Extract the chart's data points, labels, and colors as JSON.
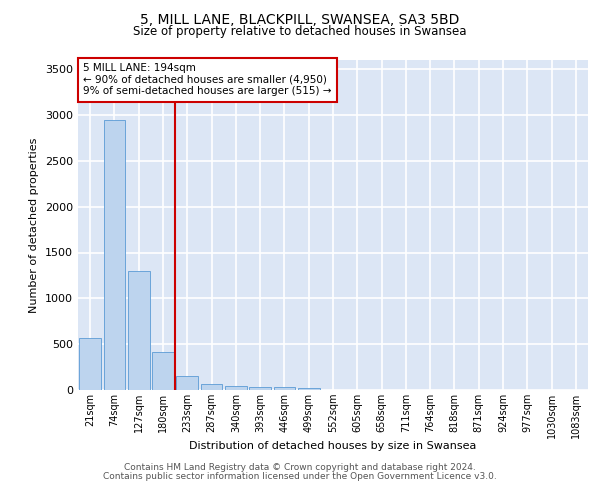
{
  "title": "5, MILL LANE, BLACKPILL, SWANSEA, SA3 5BD",
  "subtitle": "Size of property relative to detached houses in Swansea",
  "xlabel": "Distribution of detached houses by size in Swansea",
  "ylabel": "Number of detached properties",
  "categories": [
    "21sqm",
    "74sqm",
    "127sqm",
    "180sqm",
    "233sqm",
    "287sqm",
    "340sqm",
    "393sqm",
    "446sqm",
    "499sqm",
    "552sqm",
    "605sqm",
    "658sqm",
    "711sqm",
    "764sqm",
    "818sqm",
    "871sqm",
    "924sqm",
    "977sqm",
    "1030sqm",
    "1083sqm"
  ],
  "values": [
    570,
    2950,
    1300,
    420,
    155,
    65,
    40,
    35,
    35,
    25,
    0,
    0,
    0,
    0,
    0,
    0,
    0,
    0,
    0,
    0,
    0
  ],
  "bar_color": "#bdd4ee",
  "bar_edge_color": "#5b9bd5",
  "background_color": "#dce6f5",
  "grid_color": "#ffffff",
  "annotation_text": "5 MILL LANE: 194sqm\n← 90% of detached houses are smaller (4,950)\n9% of semi-detached houses are larger (515) →",
  "annotation_box_color": "#ffffff",
  "annotation_box_edge_color": "#cc0000",
  "ylim": [
    0,
    3600
  ],
  "yticks": [
    0,
    500,
    1000,
    1500,
    2000,
    2500,
    3000,
    3500
  ],
  "footer_line1": "Contains HM Land Registry data © Crown copyright and database right 2024.",
  "footer_line2": "Contains public sector information licensed under the Open Government Licence v3.0."
}
